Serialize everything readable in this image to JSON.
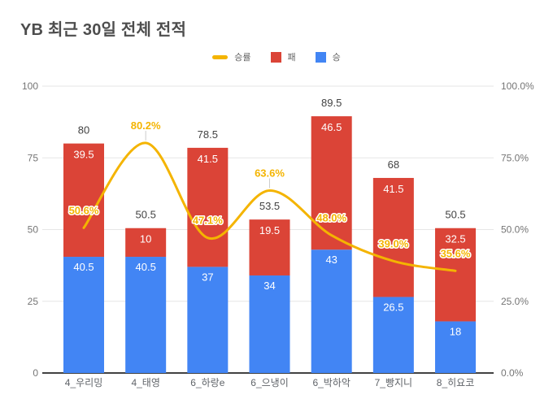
{
  "title": "YB 최근 30일 전체 전적",
  "legend": {
    "items": [
      {
        "label": "승률",
        "type": "line",
        "color": "#F4B400"
      },
      {
        "label": "패",
        "type": "box",
        "color": "#DB4437"
      },
      {
        "label": "승",
        "type": "box",
        "color": "#4285F4"
      }
    ]
  },
  "axes": {
    "left_ticks": [
      "0",
      "25",
      "50",
      "75",
      "100"
    ],
    "right_ticks": [
      "0.0%",
      "25.0%",
      "50.0%",
      "75.0%",
      "100.0%"
    ],
    "left_range": [
      0,
      100
    ],
    "right_range": [
      0,
      100
    ]
  },
  "colors": {
    "win": "#4285F4",
    "loss": "#DB4437",
    "rate_line": "#F4B400",
    "grid": "#E6E6E6",
    "baseline": "#424242",
    "tick_text": "#757575",
    "category_text": "#5F6368",
    "total_text": "#424242",
    "segment_text": "#FFFFFF"
  },
  "chart_data": {
    "type": "combo: stacked bar + line",
    "title": "YB 최근 30일 전체 전적",
    "legend_position": "top",
    "grid": true,
    "categories": [
      "4_우리밍",
      "4_태영",
      "6_하랑e",
      "6_으냉이",
      "6_박하악",
      "7_빵지니",
      "8_히요코"
    ],
    "series": [
      {
        "name": "승",
        "type": "bar",
        "axis": "left",
        "color": "#4285F4",
        "values": [
          40.5,
          40.5,
          37,
          34,
          43,
          26.5,
          18
        ],
        "labels": [
          "40.5",
          "40.5",
          "37",
          "34",
          "43",
          "26.5",
          "18"
        ]
      },
      {
        "name": "패",
        "type": "bar",
        "axis": "left",
        "color": "#DB4437",
        "values": [
          39.5,
          10,
          41.5,
          19.5,
          46.5,
          41.5,
          32.5
        ],
        "labels": [
          "39.5",
          "10",
          "41.5",
          "19.5",
          "46.5",
          "41.5",
          "32.5"
        ]
      },
      {
        "name": "승률",
        "type": "line",
        "axis": "right",
        "color": "#F4B400",
        "values": [
          50.6,
          80.2,
          47.1,
          63.6,
          48.0,
          39.0,
          35.6
        ],
        "labels": [
          "50.6%",
          "80.2%",
          "47.1%",
          "63.6%",
          "48.0%",
          "39.0%",
          "35.6%"
        ],
        "stem_indices": [
          1,
          3
        ]
      }
    ],
    "totals": [
      80,
      50.5,
      78.5,
      53.5,
      89.5,
      68,
      50.5
    ],
    "total_labels": [
      "80",
      "50.5",
      "78.5",
      "53.5",
      "89.5",
      "68",
      "50.5"
    ],
    "ylim_left": [
      0,
      100
    ],
    "ylim_right": [
      0,
      100
    ]
  }
}
